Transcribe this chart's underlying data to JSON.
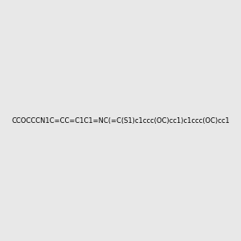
{
  "smiles": "CCOCCCN1C=CC=C1C1=NC(=C(S1)c1ccc(OC)cc1)c1ccc(OC)cc1",
  "background_color": "#e8e8e8",
  "title": "",
  "figsize": [
    3.0,
    3.0
  ],
  "dpi": 100,
  "atom_colors": {
    "N": "#0000ff",
    "S": "#cccc00",
    "O": "#ff0000",
    "C": "#000000"
  }
}
